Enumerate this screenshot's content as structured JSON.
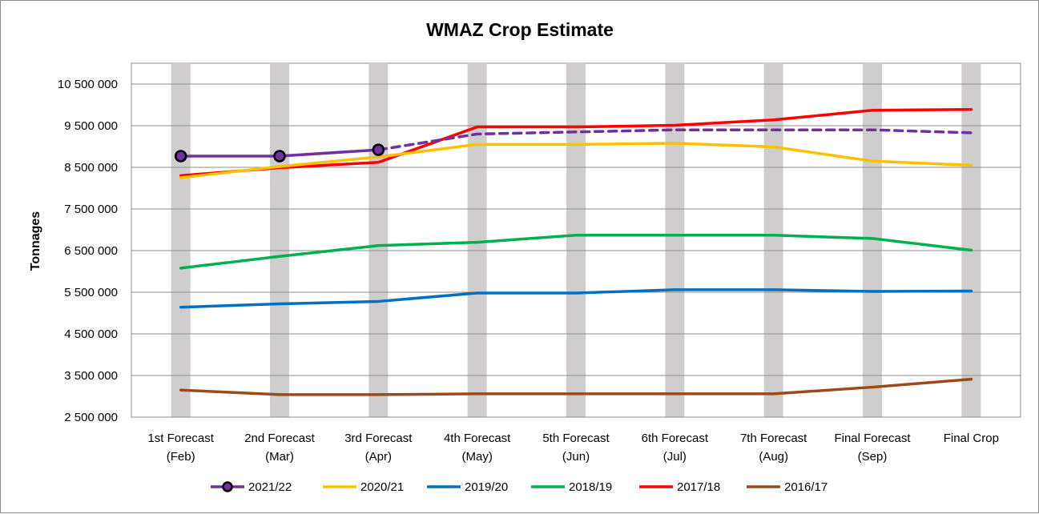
{
  "chart_data": {
    "type": "line",
    "title": "WMAZ Crop Estimate",
    "xlabel": "",
    "ylabel": "Tonnages",
    "ylim": [
      2500000,
      10500000
    ],
    "ytick_values": [
      2500000,
      3500000,
      4500000,
      5500000,
      6500000,
      7500000,
      8500000,
      9500000,
      10500000
    ],
    "ytick_labels": [
      "2 500 000",
      "3 500 000",
      "4 500 000",
      "5 500 000",
      "6 500 000",
      "7 500 000",
      "8 500 000",
      "9 500 000",
      "10 500 000"
    ],
    "categories": [
      [
        "1st Forecast",
        "(Feb)"
      ],
      [
        "2nd Forecast",
        "(Mar)"
      ],
      [
        "3rd Forecast",
        "(Apr)"
      ],
      [
        "4th Forecast",
        "(May)"
      ],
      [
        "5th Forecast",
        "(Jun)"
      ],
      [
        "6th Forecast",
        "(Jul)"
      ],
      [
        "7th Forecast",
        "(Aug)"
      ],
      [
        "Final Forecast",
        "(Sep)"
      ],
      [
        "Final Crop",
        ""
      ]
    ],
    "grid": "vertical gray column bands at each category; horizontal gridlines",
    "legend_position": "bottom",
    "series": [
      {
        "name": "2021/22",
        "color": "#7030a0",
        "marker": "circle",
        "values": [
          8770000,
          8770000,
          8920000,
          null,
          null,
          null,
          null,
          null,
          null
        ],
        "projection_dashed": [
          8920000,
          9300000,
          9350000,
          9400000,
          9400000,
          9400000,
          9330000
        ],
        "projection_start_index": 2
      },
      {
        "name": "2020/21",
        "color": "#ffc000",
        "values": [
          8250000,
          8520000,
          8750000,
          9050000,
          9050000,
          9080000,
          8990000,
          8650000,
          8550000
        ]
      },
      {
        "name": "2019/20",
        "color": "#0070c0",
        "values": [
          5140000,
          5220000,
          5280000,
          5480000,
          5480000,
          5560000,
          5560000,
          5520000,
          5530000
        ]
      },
      {
        "name": "2018/19",
        "color": "#00b050",
        "values": [
          6080000,
          6360000,
          6620000,
          6700000,
          6870000,
          6870000,
          6870000,
          6790000,
          6510000
        ]
      },
      {
        "name": "2017/18",
        "color": "#ff0000",
        "values": [
          8300000,
          8490000,
          8620000,
          9470000,
          9470000,
          9510000,
          9640000,
          9870000,
          9890000
        ]
      },
      {
        "name": "2016/17",
        "color": "#9c4a1a",
        "values": [
          3150000,
          3040000,
          3040000,
          3060000,
          3060000,
          3060000,
          3060000,
          3220000,
          3410000
        ]
      }
    ]
  }
}
